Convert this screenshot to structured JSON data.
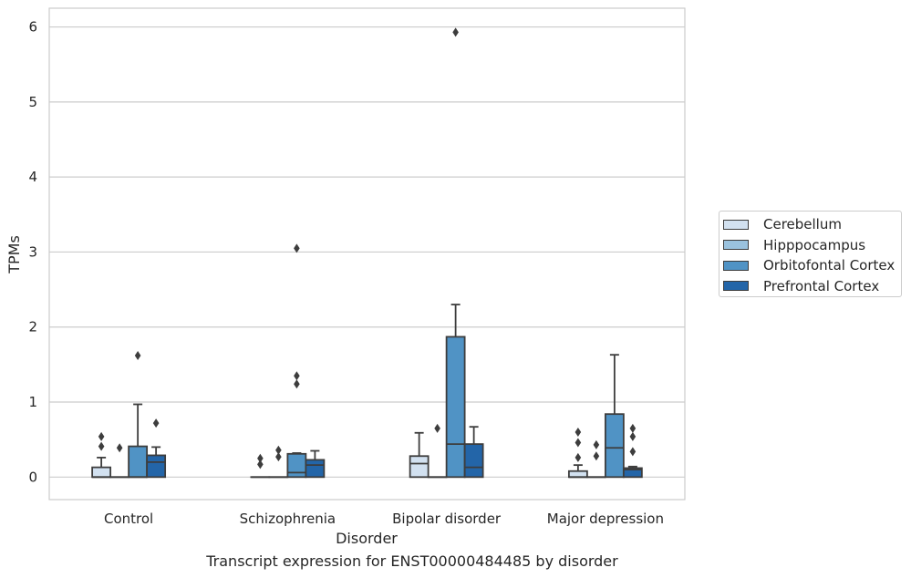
{
  "chart_data": {
    "type": "box",
    "xlabel": "Disorder",
    "ylabel": "TPMs",
    "caption": "Transcript expression for ENST00000484485 by disorder",
    "ylim": [
      -0.3,
      6.25
    ],
    "yticks": [
      0,
      1,
      2,
      3,
      4,
      5,
      6
    ],
    "grid": true,
    "legend_position": "right",
    "categories": [
      "Control",
      "Schizophrenia",
      "Bipolar disorder",
      "Major depression"
    ],
    "series": [
      {
        "name": "Cerebellum",
        "color": "#d2e1f0",
        "boxes": [
          {
            "whisker_low": 0,
            "q1": 0,
            "median": 0,
            "q3": 0.13,
            "whisker_high": 0.26,
            "outliers": [
              0.41,
              0.54
            ]
          },
          {
            "whisker_low": 0,
            "q1": 0,
            "median": 0,
            "q3": 0,
            "whisker_high": 0,
            "outliers": [
              0.17,
              0.25
            ]
          },
          {
            "whisker_low": 0,
            "q1": 0,
            "median": 0.18,
            "q3": 0.28,
            "whisker_high": 0.59,
            "outliers": []
          },
          {
            "whisker_low": 0,
            "q1": 0,
            "median": 0,
            "q3": 0.08,
            "whisker_high": 0.16,
            "outliers": [
              0.26,
              0.46,
              0.6
            ]
          }
        ]
      },
      {
        "name": "Hipppocampus",
        "color": "#9ac2de",
        "boxes": [
          {
            "whisker_low": 0,
            "q1": 0,
            "median": 0,
            "q3": 0,
            "whisker_high": 0,
            "outliers": [
              0.39
            ]
          },
          {
            "whisker_low": 0,
            "q1": 0,
            "median": 0,
            "q3": 0,
            "whisker_high": 0,
            "outliers": [
              0.27,
              0.36
            ]
          },
          {
            "whisker_low": 0,
            "q1": 0,
            "median": 0,
            "q3": 0,
            "whisker_high": 0,
            "outliers": [
              0.65
            ]
          },
          {
            "whisker_low": 0,
            "q1": 0,
            "median": 0,
            "q3": 0,
            "whisker_high": 0,
            "outliers": [
              0.28,
              0.43
            ]
          }
        ]
      },
      {
        "name": "Orbitofontal Cortex",
        "color": "#5093c5",
        "boxes": [
          {
            "whisker_low": 0,
            "q1": 0,
            "median": 0,
            "q3": 0.41,
            "whisker_high": 0.97,
            "outliers": [
              1.62
            ]
          },
          {
            "whisker_low": 0,
            "q1": 0,
            "median": 0.06,
            "q3": 0.31,
            "whisker_high": 0.32,
            "outliers": [
              1.24,
              1.35,
              3.05
            ]
          },
          {
            "whisker_low": 0,
            "q1": 0,
            "median": 0.44,
            "q3": 1.87,
            "whisker_high": 2.3,
            "outliers": [
              5.93
            ]
          },
          {
            "whisker_low": 0,
            "q1": 0,
            "median": 0.39,
            "q3": 0.84,
            "whisker_high": 1.63,
            "outliers": []
          }
        ]
      },
      {
        "name": "Prefrontal Cortex",
        "color": "#2365a8",
        "boxes": [
          {
            "whisker_low": 0,
            "q1": 0,
            "median": 0.2,
            "q3": 0.29,
            "whisker_high": 0.4,
            "outliers": [
              0.72
            ]
          },
          {
            "whisker_low": 0,
            "q1": 0,
            "median": 0.16,
            "q3": 0.23,
            "whisker_high": 0.35,
            "outliers": []
          },
          {
            "whisker_low": 0,
            "q1": 0,
            "median": 0.13,
            "q3": 0.44,
            "whisker_high": 0.67,
            "outliers": []
          },
          {
            "whisker_low": 0,
            "q1": 0,
            "median": 0.1,
            "q3": 0.12,
            "whisker_high": 0.14,
            "outliers": [
              0.34,
              0.54,
              0.65
            ]
          }
        ]
      }
    ]
  }
}
